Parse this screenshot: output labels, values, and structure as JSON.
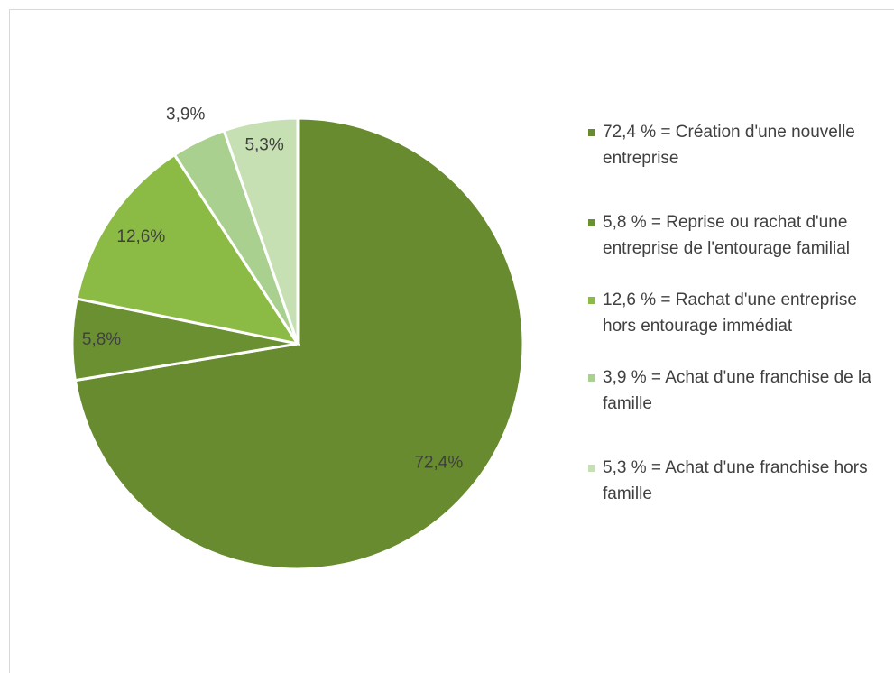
{
  "chart_data": {
    "type": "pie",
    "labels": [
      "72,4 % = Création d'une nouvelle entreprise",
      "5,8 % = Reprise ou rachat d'une entreprise de l'entourage familial",
      "12,6 % = Rachat d'une entreprise hors entourage immédiat",
      "3,9 % = Achat d'une franchise de la famille",
      "5,3 % = Achat d'une franchise hors famille"
    ],
    "values": [
      72.4,
      5.8,
      12.6,
      3.9,
      5.3
    ],
    "value_labels": [
      "72,4%",
      "5,8%",
      "12,6%",
      "3,9%",
      "5,3%"
    ],
    "colors": [
      "#678b2e",
      "#6a9032",
      "#8cbb45",
      "#a9d08e",
      "#c6e0b4"
    ],
    "legend": "right"
  }
}
